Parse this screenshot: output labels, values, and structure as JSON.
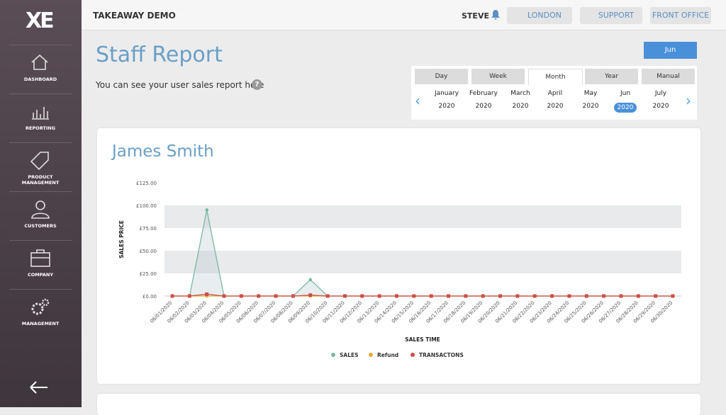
{
  "sidebar": {
    "logo": "XE",
    "items": [
      "DASHBOARD",
      "REPORTING",
      "PRODUCT MANAGEMENT",
      "CUSTOMERS",
      "COMPANY",
      "MANAGEMENT"
    ]
  },
  "header": {
    "title": "TAKEAWAY DEMO",
    "user": "STEVE",
    "buttons": [
      "LONDON",
      "SUPPORT",
      "FRONT OFFICE"
    ]
  },
  "page": {
    "title": "Staff Report",
    "subtitle": "You can see your user sales report here",
    "help": "?"
  },
  "period": {
    "selected": "Jun",
    "tabs": [
      "Day",
      "Week",
      "Month",
      "Year",
      "Manual"
    ],
    "active_tab": 2,
    "months": [
      {
        "month": "January",
        "year": "2020"
      },
      {
        "month": "February",
        "year": "2020"
      },
      {
        "month": "March",
        "year": "2020"
      },
      {
        "month": "April",
        "year": "2020"
      },
      {
        "month": "May",
        "year": "2020"
      },
      {
        "month": "Jun",
        "year": "2020"
      },
      {
        "month": "July",
        "year": "2020"
      }
    ],
    "active_month": 5
  },
  "chart_data": {
    "type": "line",
    "title": "James Smith",
    "x_label": "SALES TIME",
    "y_label": "SALES PRICE",
    "categories": [
      "06/01/2020",
      "06/02/2020",
      "06/03/2020",
      "06/04/2020",
      "06/05/2020",
      "06/06/2020",
      "06/07/2020",
      "06/08/2020",
      "06/09/2020",
      "06/10/2020",
      "06/11/2020",
      "06/12/2020",
      "06/13/2020",
      "06/14/2020",
      "06/15/2020",
      "06/16/2020",
      "06/17/2020",
      "06/18/2020",
      "06/19/2020",
      "06/20/2020",
      "06/21/2020",
      "06/22/2020",
      "06/23/2020",
      "06/24/2020",
      "06/25/2020",
      "06/26/2020",
      "06/27/2020",
      "06/28/2020",
      "06/29/2020",
      "06/30/2020"
    ],
    "series": [
      {
        "name": "SALES",
        "color": "#7ab8a0",
        "marker": "circle",
        "values": [
          0,
          0,
          95,
          0,
          0,
          0,
          0,
          0,
          18,
          0,
          0,
          0,
          0,
          0,
          0,
          0,
          0,
          0,
          0,
          0,
          0,
          0,
          0,
          0,
          0,
          0,
          0,
          0,
          0,
          0
        ]
      },
      {
        "name": "Refund",
        "color": "#e8a838",
        "marker": "circle",
        "values": [
          0,
          0,
          0,
          0,
          0,
          0,
          0,
          0,
          0,
          0,
          0,
          0,
          0,
          0,
          0,
          0,
          0,
          0,
          0,
          0,
          0,
          0,
          0,
          0,
          0,
          0,
          0,
          0,
          0,
          0
        ]
      },
      {
        "name": "TRANSACTONS",
        "color": "#cc4f48",
        "marker": "square",
        "values": [
          0,
          0,
          2,
          0,
          0,
          0,
          0,
          0,
          1,
          0,
          0,
          0,
          0,
          0,
          0,
          0,
          0,
          0,
          0,
          0,
          0,
          0,
          0,
          0,
          0,
          0,
          0,
          0,
          0,
          0
        ]
      }
    ],
    "ylim": [
      0,
      125
    ],
    "yticks": [
      {
        "value": 0,
        "label": "£0.00"
      },
      {
        "value": 25,
        "label": "£25.00"
      },
      {
        "value": 50,
        "label": "£50.00"
      },
      {
        "value": 75,
        "label": "£75.00"
      },
      {
        "value": 100,
        "label": "£100.00"
      },
      {
        "value": 125,
        "label": "£125.00"
      }
    ],
    "grid_bands": true
  }
}
